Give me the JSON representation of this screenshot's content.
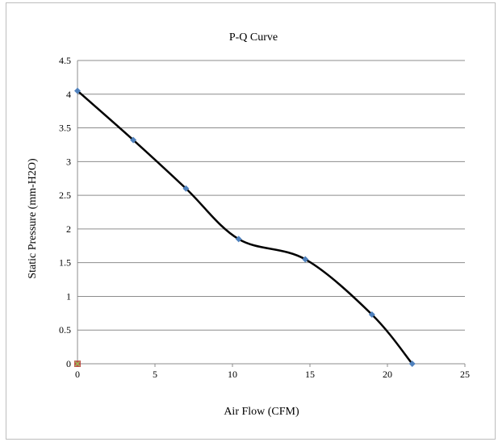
{
  "chart_data": {
    "type": "scatter",
    "title": "P-Q Curve",
    "xlabel": "Air Flow (CFM)",
    "ylabel": "Static Pressure (mm-H2O)",
    "xlim": [
      0,
      25
    ],
    "ylim": [
      0,
      4.5
    ],
    "x_ticks": [
      "0",
      "5",
      "10",
      "15",
      "20",
      "25"
    ],
    "y_ticks": [
      "0",
      "0.5",
      "1",
      "1.5",
      "2",
      "2.5",
      "3",
      "3.5",
      "4",
      "4.5"
    ],
    "grid": "horizontal",
    "series": [
      {
        "marker": "diamond",
        "line": "smooth",
        "color": "#4f81bd",
        "line_color": "#000000",
        "points": [
          {
            "x": 0,
            "y": 4.05
          },
          {
            "x": 3.6,
            "y": 3.32
          },
          {
            "x": 7.0,
            "y": 2.6
          },
          {
            "x": 10.4,
            "y": 1.85
          },
          {
            "x": 14.7,
            "y": 1.55
          },
          {
            "x": 19.0,
            "y": 0.73
          },
          {
            "x": 21.6,
            "y": 0.0
          }
        ]
      },
      {
        "marker": "square",
        "line": "none",
        "color": "#c0504d",
        "points": [
          {
            "x": 0,
            "y": 0
          }
        ]
      },
      {
        "marker": "x",
        "line": "none",
        "color": "#9bbb59",
        "points": [
          {
            "x": 0,
            "y": 0
          }
        ]
      }
    ]
  }
}
